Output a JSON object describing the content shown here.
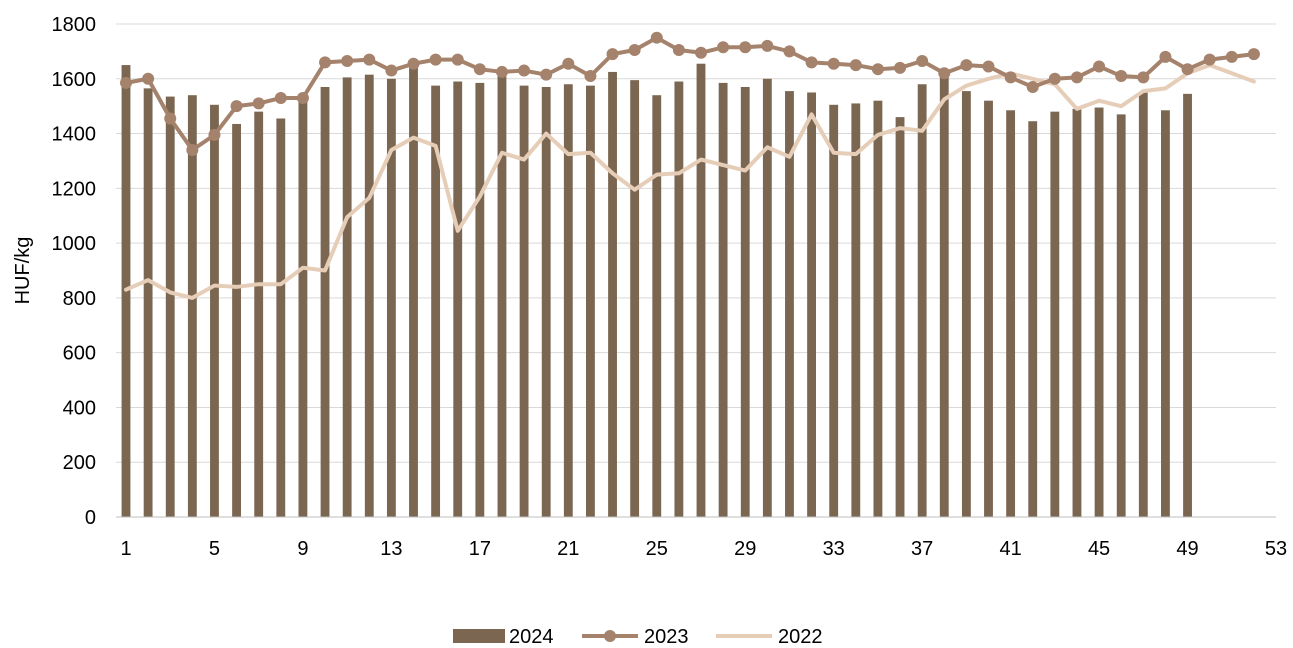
{
  "chart_data": {
    "type": "bar",
    "ylabel": "HUF/kg",
    "xlabel": "",
    "ylim": [
      0,
      1800
    ],
    "yticks": [
      0,
      200,
      400,
      600,
      800,
      1000,
      1200,
      1400,
      1600,
      1800
    ],
    "xticks": [
      1,
      5,
      9,
      13,
      17,
      21,
      25,
      29,
      33,
      37,
      41,
      45,
      49,
      53
    ],
    "xlim": [
      1,
      53
    ],
    "grid": true,
    "legend_position": "bottom",
    "series": [
      {
        "name": "2024",
        "kind": "bar",
        "color": "#7b6651",
        "x": [
          1,
          2,
          3,
          4,
          5,
          6,
          7,
          8,
          9,
          10,
          11,
          12,
          13,
          14,
          15,
          16,
          17,
          18,
          19,
          20,
          21,
          22,
          23,
          24,
          25,
          26,
          27,
          28,
          29,
          30,
          31,
          32,
          33,
          34,
          35,
          36,
          37,
          38,
          39,
          40,
          41,
          42,
          43,
          44,
          45,
          46,
          47,
          48,
          49
        ],
        "values": [
          1650,
          1565,
          1535,
          1540,
          1505,
          1435,
          1480,
          1455,
          1530,
          1570,
          1605,
          1615,
          1600,
          1645,
          1575,
          1590,
          1585,
          1610,
          1575,
          1570,
          1580,
          1575,
          1625,
          1595,
          1540,
          1590,
          1655,
          1585,
          1570,
          1600,
          1555,
          1550,
          1505,
          1510,
          1520,
          1460,
          1580,
          1620,
          1555,
          1520,
          1485,
          1445,
          1480,
          1490,
          1495,
          1470,
          1550,
          1485,
          1545
        ]
      },
      {
        "name": "2023",
        "kind": "line-marker",
        "color": "#a5826b",
        "x": [
          1,
          2,
          3,
          4,
          5,
          6,
          7,
          8,
          9,
          10,
          11,
          12,
          13,
          14,
          15,
          16,
          17,
          18,
          19,
          20,
          21,
          22,
          23,
          24,
          25,
          26,
          27,
          28,
          29,
          30,
          31,
          32,
          33,
          34,
          35,
          36,
          37,
          38,
          39,
          40,
          41,
          42,
          43,
          44,
          45,
          46,
          47,
          48,
          49,
          50,
          51,
          52
        ],
        "values": [
          1585,
          1600,
          1455,
          1340,
          1395,
          1500,
          1510,
          1530,
          1530,
          1660,
          1665,
          1670,
          1630,
          1655,
          1670,
          1670,
          1635,
          1625,
          1630,
          1615,
          1655,
          1610,
          1690,
          1705,
          1750,
          1705,
          1695,
          1715,
          1715,
          1720,
          1700,
          1660,
          1655,
          1650,
          1635,
          1640,
          1665,
          1620,
          1650,
          1645,
          1605,
          1570,
          1600,
          1605,
          1645,
          1610,
          1605,
          1680,
          1635,
          1670,
          1680,
          1690
        ]
      },
      {
        "name": "2022",
        "kind": "line",
        "color": "#e6cdb8",
        "x": [
          1,
          2,
          3,
          4,
          5,
          6,
          7,
          8,
          9,
          10,
          11,
          12,
          13,
          14,
          15,
          16,
          17,
          18,
          19,
          20,
          21,
          22,
          23,
          24,
          25,
          26,
          27,
          28,
          29,
          30,
          31,
          32,
          33,
          34,
          35,
          36,
          37,
          38,
          39,
          40,
          41,
          42,
          43,
          44,
          45,
          46,
          47,
          48,
          49,
          50,
          51,
          52
        ],
        "values": [
          830,
          865,
          820,
          800,
          845,
          840,
          850,
          850,
          910,
          900,
          1095,
          1165,
          1340,
          1385,
          1355,
          1045,
          1170,
          1330,
          1305,
          1400,
          1325,
          1330,
          1255,
          1195,
          1250,
          1255,
          1305,
          1285,
          1265,
          1350,
          1315,
          1470,
          1330,
          1325,
          1395,
          1420,
          1410,
          1525,
          1575,
          1600,
          1620,
          1600,
          1580,
          1490,
          1520,
          1500,
          1555,
          1565,
          1620,
          1650,
          1620,
          1590
        ]
      }
    ]
  }
}
